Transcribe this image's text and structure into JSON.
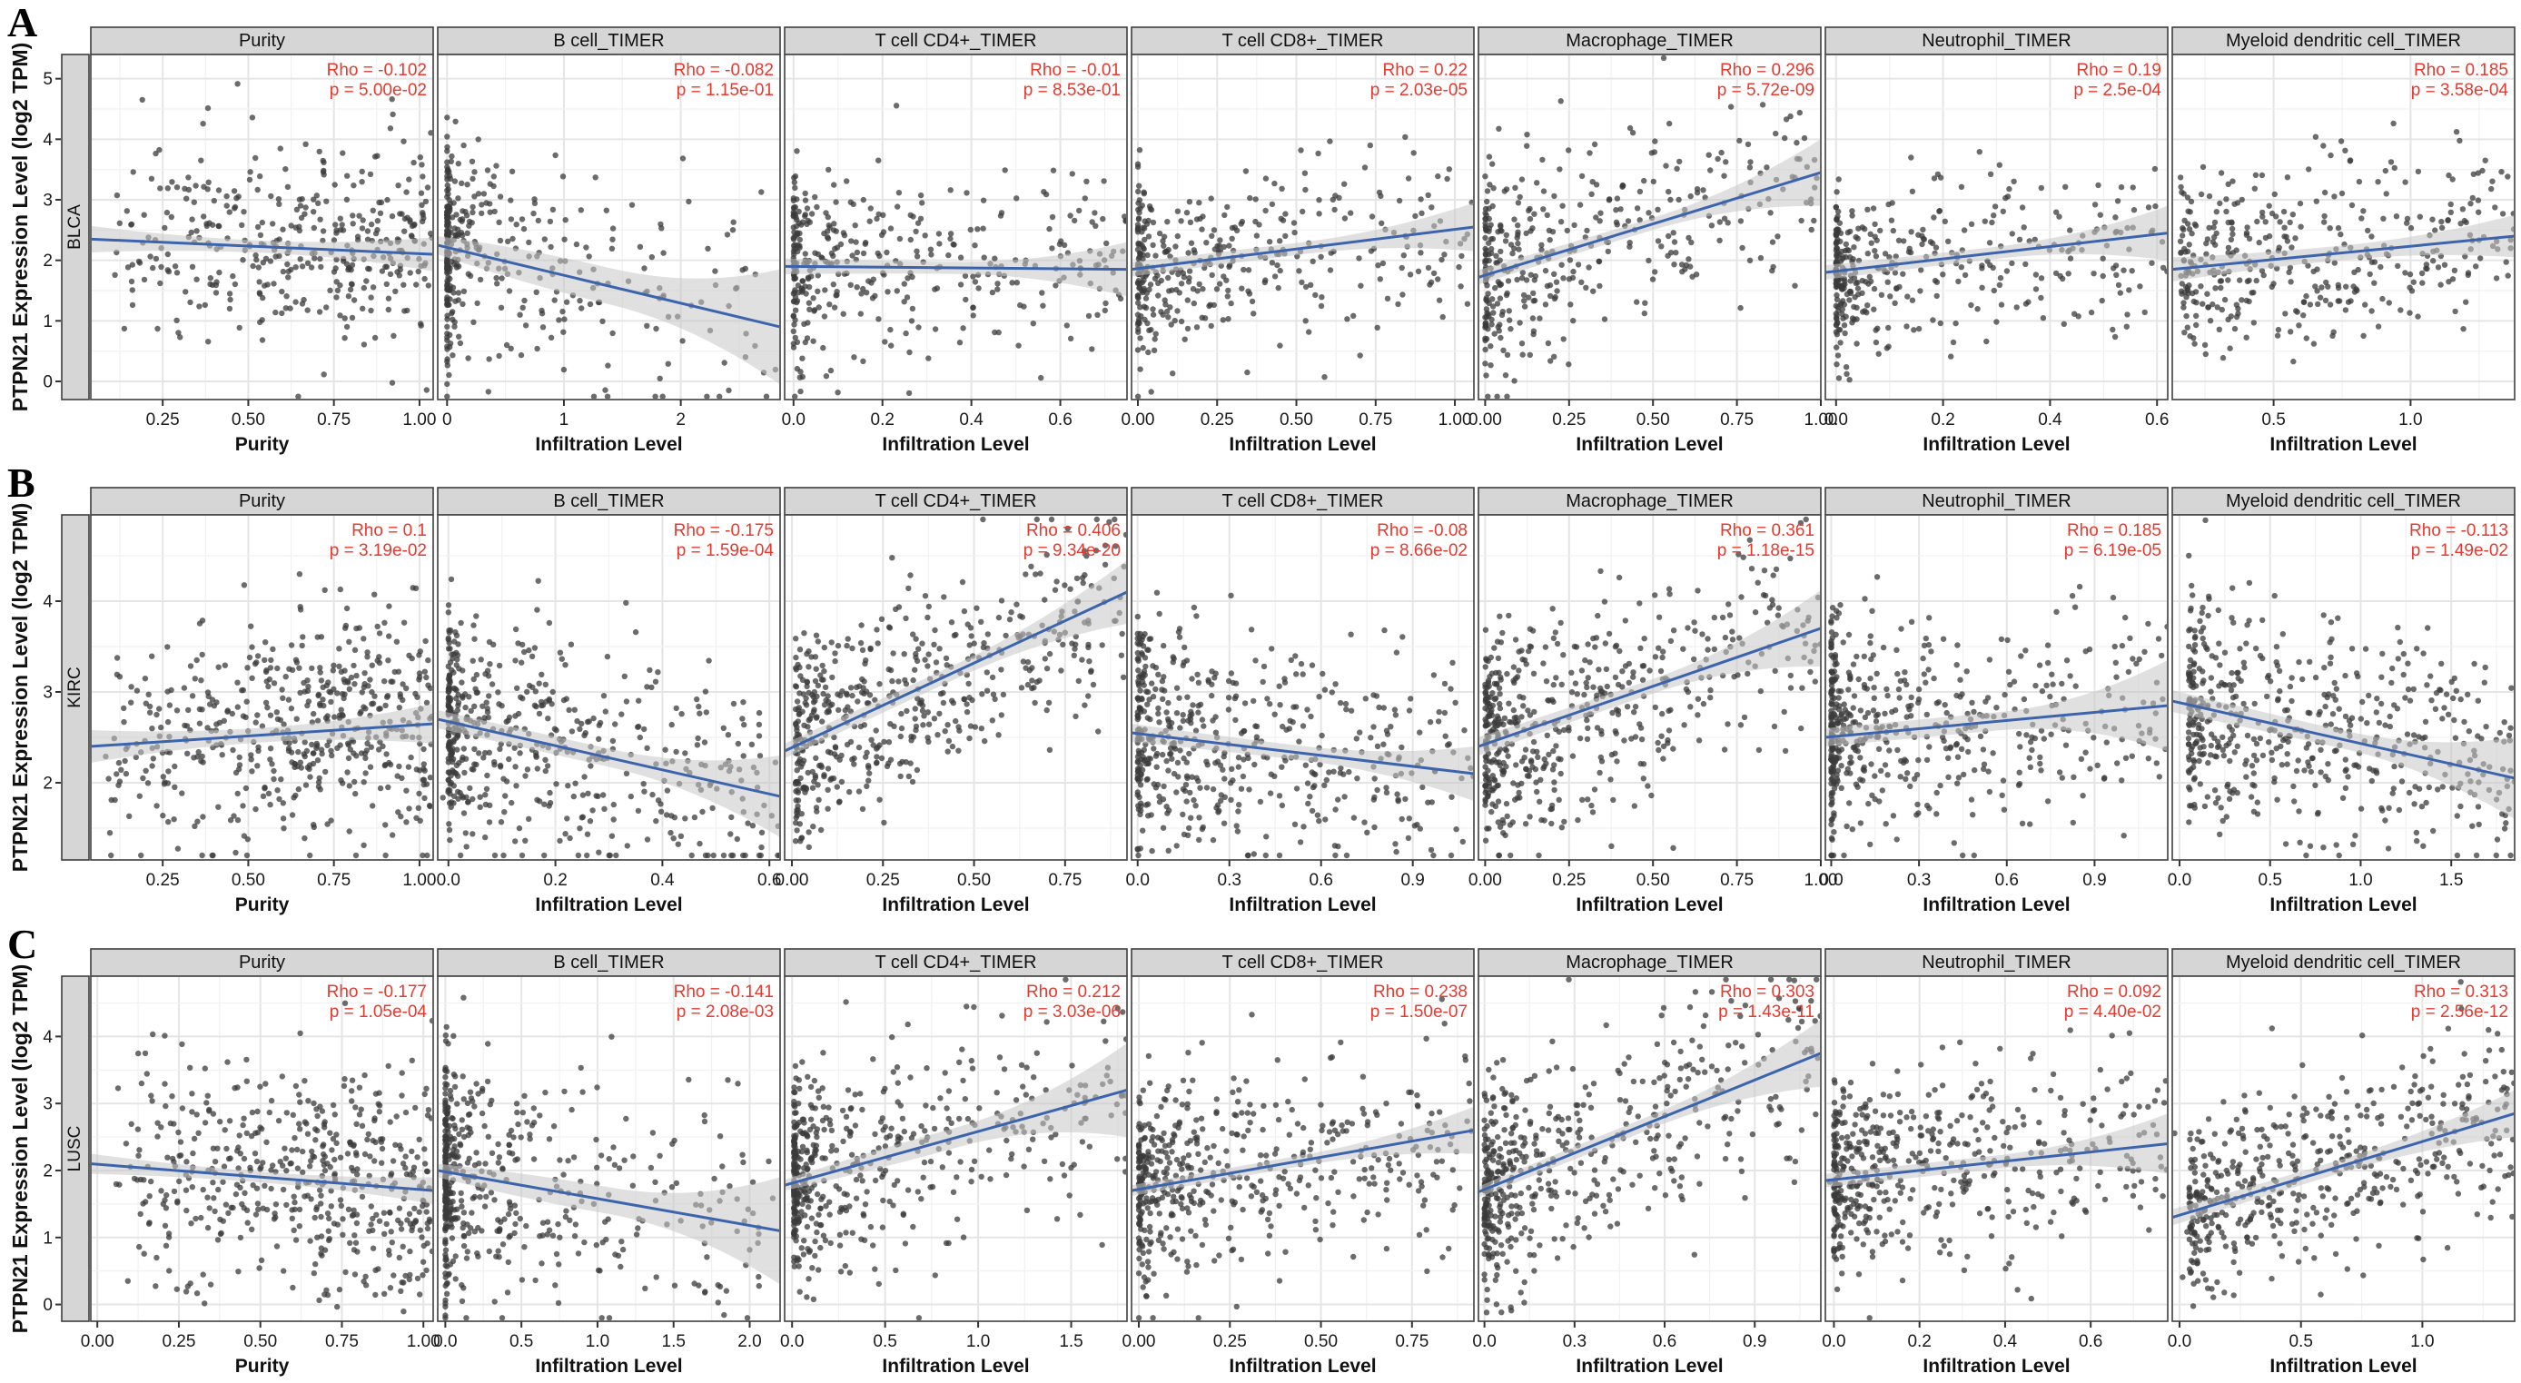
{
  "figure_type": "TIMER immune infiltration correlation scatter-plot grid",
  "colors": {
    "background": "#ffffff",
    "panel_bg": "#ffffff",
    "panel_border": "#4a4a4a",
    "strip_bg": "#d6d6d6",
    "strip_border": "#3d3d3d",
    "grid_major": "#e5e5e5",
    "grid_minor": "#f1f1f1",
    "point": "#3b3b3b",
    "regression_line": "#3c64ad",
    "confidence_band": "#c7c7c7",
    "annotation_red": "#e8392f",
    "axis_text": "#1a1a1a",
    "tick_mark": "#333333"
  },
  "chart_data": {
    "type": "scatter",
    "y_axis_title": "PTPN21 Expression Level (log2 TPM)",
    "rows": [
      {
        "label": "A",
        "cancer": "BLCA",
        "y_ticks": [
          "5",
          "4",
          "3",
          "2",
          "1",
          "0"
        ],
        "y_range": [
          -0.3,
          5.4
        ],
        "n_points": 380,
        "panels": [
          {
            "title": "Purity",
            "x_label": "Purity",
            "rho_label": "Rho = -0.102",
            "p_label": "p = 5.00e-02",
            "x_ticks": [
              "0.25",
              "0.50",
              "0.75",
              "1.00"
            ],
            "x_range": [
              0.04,
              1.04
            ],
            "trend": {
              "y0": 2.35,
              "y1": 2.1
            },
            "ci": [
              0.22,
              0.1,
              0.28
            ],
            "scatter": {
              "pow": 0.7,
              "min": 0.1,
              "sd": 0.85
            }
          },
          {
            "title": "B cell_TIMER",
            "x_label": "Infiltration Level",
            "rho_label": "Rho = -0.082",
            "p_label": "p = 1.15e-01",
            "x_ticks": [
              "0",
              "1",
              "2"
            ],
            "x_range": [
              -0.08,
              2.85
            ],
            "trend": {
              "y0": 2.25,
              "y1": 0.9
            },
            "ci": [
              0.15,
              0.3,
              0.95
            ],
            "scatter": {
              "pow": 4.5,
              "min": 0,
              "sd": 0.9
            }
          },
          {
            "title": "T cell CD4+_TIMER",
            "x_label": "Infiltration Level",
            "rho_label": "Rho = -0.01",
            "p_label": "p = 8.53e-01",
            "x_ticks": [
              "0.0",
              "0.2",
              "0.4",
              "0.6"
            ],
            "x_range": [
              -0.02,
              0.75
            ],
            "trend": {
              "y0": 1.9,
              "y1": 1.85
            },
            "ci": [
              0.13,
              0.1,
              0.45
            ],
            "scatter": {
              "pow": 2.6,
              "min": 0,
              "sd": 0.75
            }
          },
          {
            "title": "T cell CD8+_TIMER",
            "x_label": "Infiltration Level",
            "rho_label": "Rho = 0.22",
            "p_label": "p = 2.03e-05",
            "x_ticks": [
              "0.00",
              "0.25",
              "0.50",
              "0.75",
              "1.00"
            ],
            "x_range": [
              -0.02,
              1.06
            ],
            "trend": {
              "y0": 1.85,
              "y1": 2.55
            },
            "ci": [
              0.12,
              0.1,
              0.4
            ],
            "scatter": {
              "pow": 2.6,
              "min": 0,
              "sd": 0.75
            }
          },
          {
            "title": "Macrophage_TIMER",
            "x_label": "Infiltration Level",
            "rho_label": "Rho = 0.296",
            "p_label": "p = 5.72e-09",
            "x_ticks": [
              "0.00",
              "0.25",
              "0.50",
              "0.75",
              "1.00"
            ],
            "x_range": [
              -0.02,
              1.0
            ],
            "trend": {
              "y0": 1.72,
              "y1": 3.45
            },
            "ci": [
              0.12,
              0.1,
              0.55
            ],
            "scatter": {
              "pow": 2.4,
              "min": 0,
              "sd": 0.8
            }
          },
          {
            "title": "Neutrophil_TIMER",
            "x_label": "Infiltration Level",
            "rho_label": "Rho = 0.19",
            "p_label": "p = 2.5e-04",
            "x_ticks": [
              "0.0",
              "0.2",
              "0.4",
              "0.6"
            ],
            "x_range": [
              -0.02,
              0.62
            ],
            "trend": {
              "y0": 1.8,
              "y1": 2.45
            },
            "ci": [
              0.12,
              0.1,
              0.45
            ],
            "scatter": {
              "pow": 2.6,
              "min": 0,
              "sd": 0.7
            }
          },
          {
            "title": "Myeloid dendritic cell_TIMER",
            "x_label": "Infiltration Level",
            "rho_label": "Rho = 0.185",
            "p_label": "p = 3.58e-04",
            "x_ticks": [
              "0.5",
              "1.0"
            ],
            "x_range": [
              0.13,
              1.38
            ],
            "trend": {
              "y0": 1.85,
              "y1": 2.4
            },
            "ci": [
              0.2,
              0.12,
              0.35
            ],
            "scatter": {
              "pow": 1.4,
              "min": 0.16,
              "sd": 0.72
            }
          }
        ]
      },
      {
        "label": "B",
        "cancer": "KIRC",
        "y_ticks": [
          "4",
          "3",
          "2"
        ],
        "y_range": [
          1.15,
          4.95
        ],
        "n_points": 520,
        "panels": [
          {
            "title": "Purity",
            "x_label": "Purity",
            "rho_label": "Rho = 0.1",
            "p_label": "p = 3.19e-02",
            "x_ticks": [
              "0.25",
              "0.50",
              "0.75",
              "1.00"
            ],
            "x_range": [
              0.04,
              1.04
            ],
            "trend": {
              "y0": 2.4,
              "y1": 2.65
            },
            "ci": [
              0.18,
              0.08,
              0.22
            ],
            "scatter": {
              "pow": 0.7,
              "min": 0.08,
              "sd": 0.62
            }
          },
          {
            "title": "B cell_TIMER",
            "x_label": "Infiltration Level",
            "rho_label": "Rho = -0.175",
            "p_label": "p = 1.59e-04",
            "x_ticks": [
              "0.0",
              "0.2",
              "0.4",
              "0.6"
            ],
            "x_range": [
              -0.02,
              0.62
            ],
            "trend": {
              "y0": 2.7,
              "y1": 1.85
            },
            "ci": [
              0.1,
              0.1,
              0.45
            ],
            "scatter": {
              "pow": 2.4,
              "min": 0,
              "sd": 0.62
            }
          },
          {
            "title": "T cell CD4+_TIMER",
            "x_label": "Infiltration Level",
            "rho_label": "Rho = 0.406",
            "p_label": "p = 9.34e-20",
            "x_ticks": [
              "0.00",
              "0.25",
              "0.50",
              "0.75"
            ],
            "x_range": [
              -0.02,
              0.92
            ],
            "trend": {
              "y0": 2.35,
              "y1": 4.1
            },
            "ci": [
              0.08,
              0.08,
              0.35
            ],
            "scatter": {
              "pow": 2.0,
              "min": 0.01,
              "sd": 0.55
            }
          },
          {
            "title": "T cell CD8+_TIMER",
            "x_label": "Infiltration Level",
            "rho_label": "Rho = -0.08",
            "p_label": "p = 8.66e-02",
            "x_ticks": [
              "0.0",
              "0.3",
              "0.6",
              "0.9"
            ],
            "x_range": [
              -0.02,
              1.1
            ],
            "trend": {
              "y0": 2.55,
              "y1": 2.1
            },
            "ci": [
              0.1,
              0.08,
              0.3
            ],
            "scatter": {
              "pow": 2.6,
              "min": 0,
              "sd": 0.6
            }
          },
          {
            "title": "Macrophage_TIMER",
            "x_label": "Infiltration Level",
            "rho_label": "Rho = 0.361",
            "p_label": "p = 1.18e-15",
            "x_ticks": [
              "0.00",
              "0.25",
              "0.50",
              "0.75",
              "1.00"
            ],
            "x_range": [
              -0.02,
              1.0
            ],
            "trend": {
              "y0": 2.4,
              "y1": 3.7
            },
            "ci": [
              0.1,
              0.08,
              0.42
            ],
            "scatter": {
              "pow": 2.2,
              "min": 0,
              "sd": 0.6
            }
          },
          {
            "title": "Neutrophil_TIMER",
            "x_label": "Infiltration Level",
            "rho_label": "Rho = 0.185",
            "p_label": "p = 6.19e-05",
            "x_ticks": [
              "0.0",
              "0.3",
              "0.6",
              "0.9"
            ],
            "x_range": [
              -0.02,
              1.15
            ],
            "trend": {
              "y0": 2.5,
              "y1": 2.85
            },
            "ci": [
              0.1,
              0.1,
              0.5
            ],
            "scatter": {
              "pow": 2.8,
              "min": 0,
              "sd": 0.6
            }
          },
          {
            "title": "Myeloid dendritic cell_TIMER",
            "x_label": "Infiltration Level",
            "rho_label": "Rho = -0.113",
            "p_label": "p = 1.49e-02",
            "x_ticks": [
              "0.0",
              "0.5",
              "1.0",
              "1.5"
            ],
            "x_range": [
              -0.04,
              1.85
            ],
            "trend": {
              "y0": 2.9,
              "y1": 2.05
            },
            "ci": [
              0.12,
              0.1,
              0.45
            ],
            "scatter": {
              "pow": 1.7,
              "min": 0.05,
              "sd": 0.6
            }
          }
        ]
      },
      {
        "label": "C",
        "cancer": "LUSC",
        "y_ticks": [
          "4",
          "3",
          "2",
          "1",
          "0"
        ],
        "y_range": [
          -0.25,
          4.9
        ],
        "n_points": 500,
        "panels": [
          {
            "title": "Purity",
            "x_label": "Purity",
            "rho_label": "Rho = -0.177",
            "p_label": "p = 1.05e-04",
            "x_ticks": [
              "0.00",
              "0.25",
              "0.50",
              "0.75",
              "1.00"
            ],
            "x_range": [
              -0.02,
              1.03
            ],
            "trend": {
              "y0": 2.1,
              "y1": 1.7
            },
            "ci": [
              0.15,
              0.08,
              0.2
            ],
            "scatter": {
              "pow": 0.75,
              "min": 0.05,
              "sd": 0.8
            }
          },
          {
            "title": "B cell_TIMER",
            "x_label": "Infiltration Level",
            "rho_label": "Rho = -0.141",
            "p_label": "p = 2.08e-03",
            "x_ticks": [
              "0.0",
              "0.5",
              "1.0",
              "1.5",
              "2.0"
            ],
            "x_range": [
              -0.05,
              2.2
            ],
            "trend": {
              "y0": 2.0,
              "y1": 1.1
            },
            "ci": [
              0.1,
              0.2,
              0.8
            ],
            "scatter": {
              "pow": 3.8,
              "min": 0,
              "sd": 0.85
            }
          },
          {
            "title": "T cell CD4+_TIMER",
            "x_label": "Infiltration Level",
            "rho_label": "Rho = 0.212",
            "p_label": "p = 3.03e-06",
            "x_ticks": [
              "0.0",
              "0.5",
              "1.0",
              "1.5"
            ],
            "x_range": [
              -0.04,
              1.8
            ],
            "trend": {
              "y0": 1.78,
              "y1": 3.2
            },
            "ci": [
              0.08,
              0.15,
              0.7
            ],
            "scatter": {
              "pow": 3.0,
              "min": 0.01,
              "sd": 0.75
            }
          },
          {
            "title": "T cell CD8+_TIMER",
            "x_label": "Infiltration Level",
            "rho_label": "Rho = 0.238",
            "p_label": "p = 1.50e-07",
            "x_ticks": [
              "0.00",
              "0.25",
              "0.50",
              "0.75"
            ],
            "x_range": [
              -0.02,
              0.92
            ],
            "trend": {
              "y0": 1.7,
              "y1": 2.6
            },
            "ci": [
              0.08,
              0.08,
              0.35
            ],
            "scatter": {
              "pow": 2.4,
              "min": 0,
              "sd": 0.75
            }
          },
          {
            "title": "Macrophage_TIMER",
            "x_label": "Infiltration Level",
            "rho_label": "Rho = 0.303",
            "p_label": "p = 1.43e-11",
            "x_ticks": [
              "0.0",
              "0.3",
              "0.6",
              "0.9"
            ],
            "x_range": [
              -0.02,
              1.12
            ],
            "trend": {
              "y0": 1.68,
              "y1": 3.75
            },
            "ci": [
              0.08,
              0.1,
              0.5
            ],
            "scatter": {
              "pow": 2.4,
              "min": 0,
              "sd": 0.8
            }
          },
          {
            "title": "Neutrophil_TIMER",
            "x_label": "Infiltration Level",
            "rho_label": "Rho = 0.092",
            "p_label": "p = 4.40e-02",
            "x_ticks": [
              "0.0",
              "0.2",
              "0.4",
              "0.6"
            ],
            "x_range": [
              -0.02,
              0.78
            ],
            "trend": {
              "y0": 1.85,
              "y1": 2.4
            },
            "ci": [
              0.1,
              0.1,
              0.45
            ],
            "scatter": {
              "pow": 2.4,
              "min": 0,
              "sd": 0.72
            }
          },
          {
            "title": "Myeloid dendritic cell_TIMER",
            "x_label": "Infiltration Level",
            "rho_label": "Rho = 0.313",
            "p_label": "p = 2.56e-12",
            "x_ticks": [
              "0.0",
              "0.5",
              "1.0"
            ],
            "x_range": [
              -0.03,
              1.38
            ],
            "trend": {
              "y0": 1.3,
              "y1": 2.85
            },
            "ci": [
              0.12,
              0.1,
              0.35
            ],
            "scatter": {
              "pow": 1.6,
              "min": 0.04,
              "sd": 0.7
            }
          }
        ]
      }
    ]
  }
}
